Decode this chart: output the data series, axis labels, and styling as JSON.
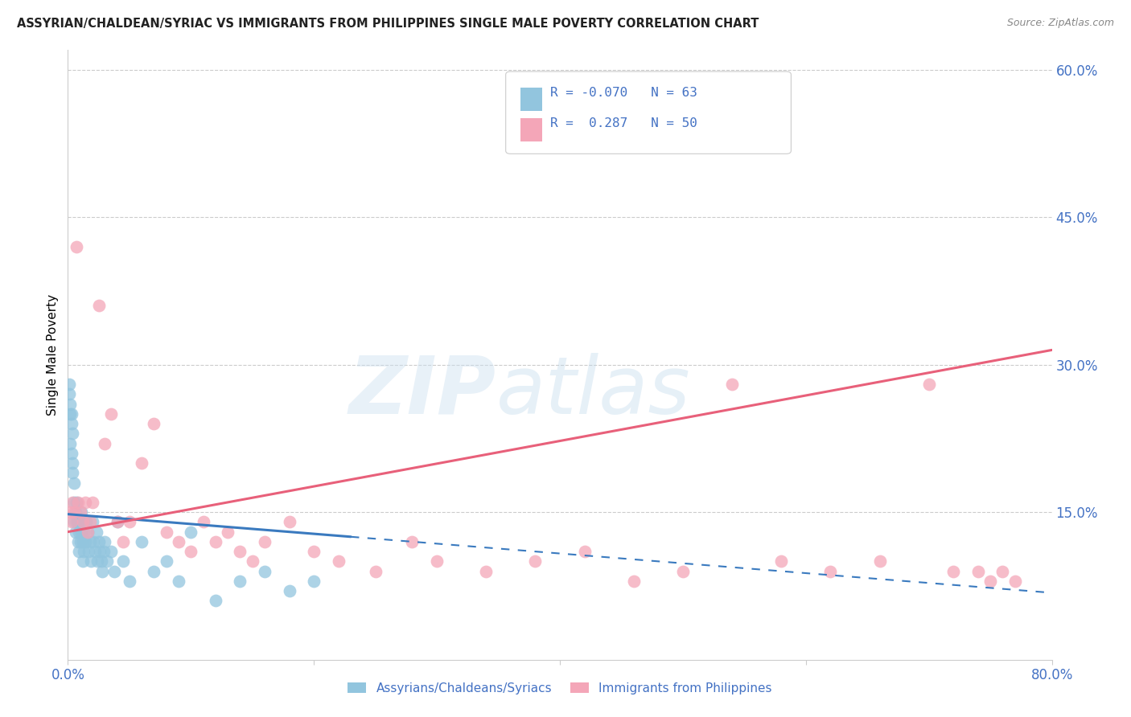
{
  "title": "ASSYRIAN/CHALDEAN/SYRIAC VS IMMIGRANTS FROM PHILIPPINES SINGLE MALE POVERTY CORRELATION CHART",
  "source": "Source: ZipAtlas.com",
  "ylabel": "Single Male Poverty",
  "legend_label1": "Assyrians/Chaldeans/Syriacs",
  "legend_label2": "Immigrants from Philippines",
  "R1": -0.07,
  "N1": 63,
  "R2": 0.287,
  "N2": 50,
  "color1": "#92c5de",
  "color2": "#f4a6b8",
  "trendline1_color": "#3a7abf",
  "trendline2_color": "#e8607a",
  "xlim": [
    0,
    0.8
  ],
  "ylim": [
    0.0,
    0.62
  ],
  "ytick_vals": [
    0.15,
    0.3,
    0.45,
    0.6
  ],
  "ytick_labels": [
    "15.0%",
    "30.0%",
    "45.0%",
    "60.0%"
  ],
  "xtick_vals": [
    0.0,
    0.2,
    0.4,
    0.6,
    0.8
  ],
  "xtick_labels": [
    "0.0%",
    "",
    "",
    "",
    "80.0%"
  ],
  "tick_color": "#4472c4",
  "grid_color": "#cccccc",
  "blue_x": [
    0.001,
    0.001,
    0.002,
    0.002,
    0.002,
    0.003,
    0.003,
    0.003,
    0.004,
    0.004,
    0.004,
    0.005,
    0.005,
    0.005,
    0.006,
    0.006,
    0.007,
    0.007,
    0.008,
    0.008,
    0.009,
    0.009,
    0.01,
    0.01,
    0.011,
    0.011,
    0.012,
    0.012,
    0.013,
    0.013,
    0.014,
    0.015,
    0.016,
    0.017,
    0.018,
    0.019,
    0.02,
    0.021,
    0.022,
    0.023,
    0.024,
    0.025,
    0.026,
    0.027,
    0.028,
    0.029,
    0.03,
    0.032,
    0.035,
    0.038,
    0.04,
    0.045,
    0.05,
    0.06,
    0.07,
    0.08,
    0.09,
    0.1,
    0.12,
    0.14,
    0.16,
    0.18,
    0.2
  ],
  "blue_y": [
    0.28,
    0.27,
    0.26,
    0.25,
    0.22,
    0.25,
    0.24,
    0.21,
    0.23,
    0.2,
    0.19,
    0.18,
    0.16,
    0.14,
    0.15,
    0.13,
    0.16,
    0.14,
    0.14,
    0.12,
    0.13,
    0.11,
    0.14,
    0.12,
    0.15,
    0.13,
    0.12,
    0.1,
    0.13,
    0.11,
    0.12,
    0.14,
    0.13,
    0.11,
    0.12,
    0.1,
    0.14,
    0.12,
    0.11,
    0.13,
    0.1,
    0.12,
    0.11,
    0.1,
    0.09,
    0.11,
    0.12,
    0.1,
    0.11,
    0.09,
    0.14,
    0.1,
    0.08,
    0.12,
    0.09,
    0.1,
    0.08,
    0.13,
    0.06,
    0.08,
    0.09,
    0.07,
    0.08
  ],
  "pink_x": [
    0.002,
    0.003,
    0.004,
    0.005,
    0.007,
    0.008,
    0.01,
    0.012,
    0.014,
    0.016,
    0.018,
    0.02,
    0.025,
    0.03,
    0.035,
    0.04,
    0.045,
    0.05,
    0.06,
    0.07,
    0.08,
    0.09,
    0.1,
    0.11,
    0.12,
    0.13,
    0.14,
    0.15,
    0.16,
    0.18,
    0.2,
    0.22,
    0.25,
    0.28,
    0.3,
    0.34,
    0.38,
    0.42,
    0.46,
    0.5,
    0.54,
    0.58,
    0.62,
    0.66,
    0.7,
    0.72,
    0.74,
    0.75,
    0.76,
    0.77
  ],
  "pink_y": [
    0.15,
    0.14,
    0.16,
    0.15,
    0.42,
    0.16,
    0.15,
    0.14,
    0.16,
    0.13,
    0.14,
    0.16,
    0.36,
    0.22,
    0.25,
    0.14,
    0.12,
    0.14,
    0.2,
    0.24,
    0.13,
    0.12,
    0.11,
    0.14,
    0.12,
    0.13,
    0.11,
    0.1,
    0.12,
    0.14,
    0.11,
    0.1,
    0.09,
    0.12,
    0.1,
    0.09,
    0.1,
    0.11,
    0.08,
    0.09,
    0.28,
    0.1,
    0.09,
    0.1,
    0.28,
    0.09,
    0.09,
    0.08,
    0.09,
    0.08
  ],
  "blue_trendline_x0": 0.0,
  "blue_trendline_x_solid_end": 0.23,
  "blue_trendline_x1": 0.8,
  "blue_trendline_y0": 0.148,
  "blue_trendline_y1": 0.068,
  "pink_trendline_x0": 0.0,
  "pink_trendline_x1": 0.8,
  "pink_trendline_y0": 0.13,
  "pink_trendline_y1": 0.315
}
